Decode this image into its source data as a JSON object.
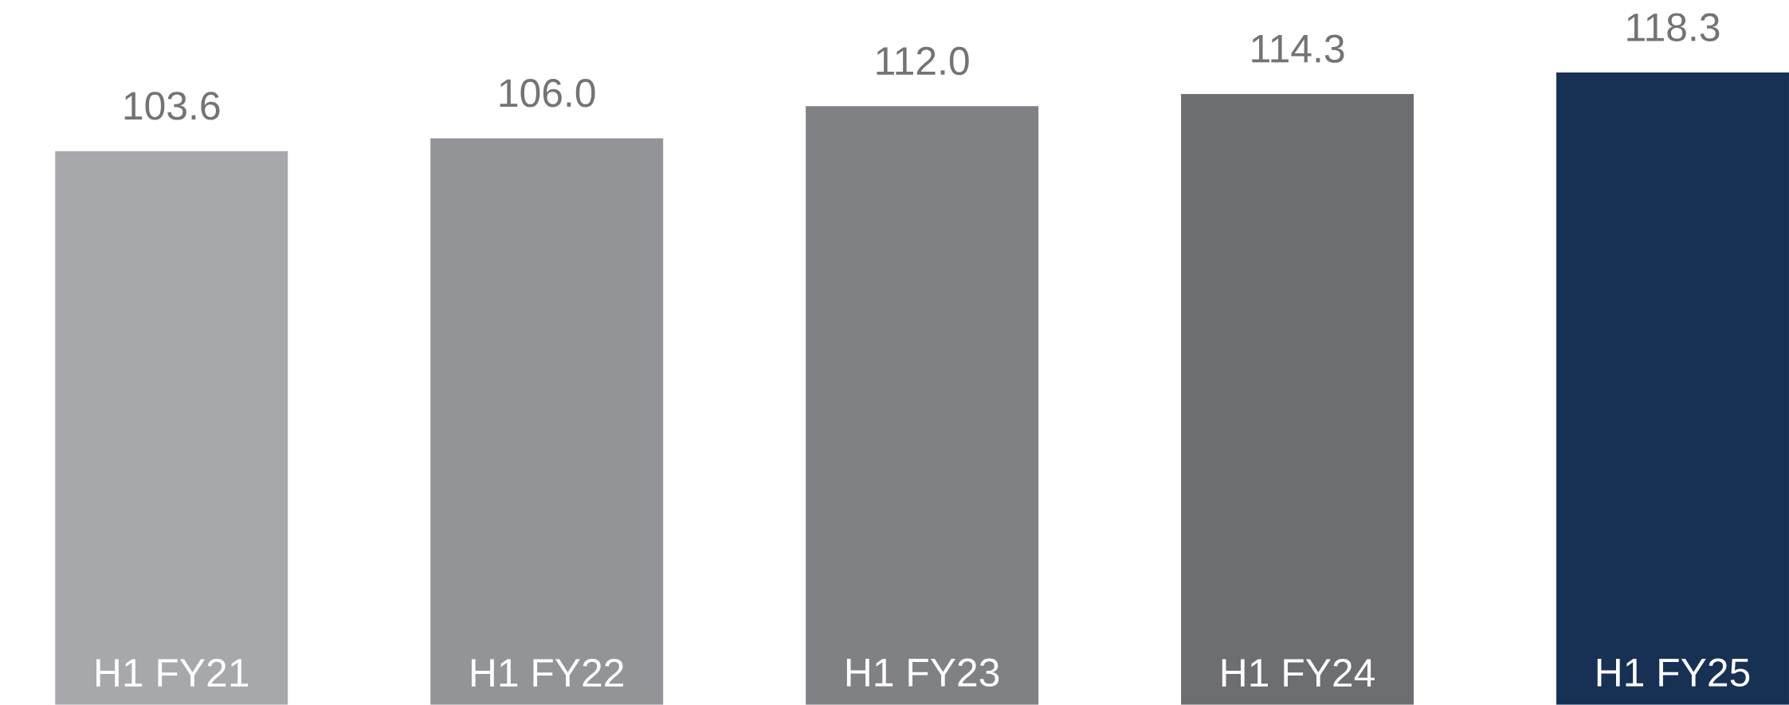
{
  "chart_data": {
    "type": "bar",
    "categories": [
      "H1 FY21",
      "H1 FY22",
      "H1 FY23",
      "H1 FY24",
      "H1 FY25"
    ],
    "values": [
      103.6,
      106.0,
      112.0,
      114.3,
      118.3
    ],
    "colors": [
      "#a7a8ab",
      "#939497",
      "#808184",
      "#6d6e71",
      "#163154"
    ],
    "value_labels": [
      "103.6",
      "106.0",
      "112.0",
      "114.3",
      "118.3"
    ]
  }
}
